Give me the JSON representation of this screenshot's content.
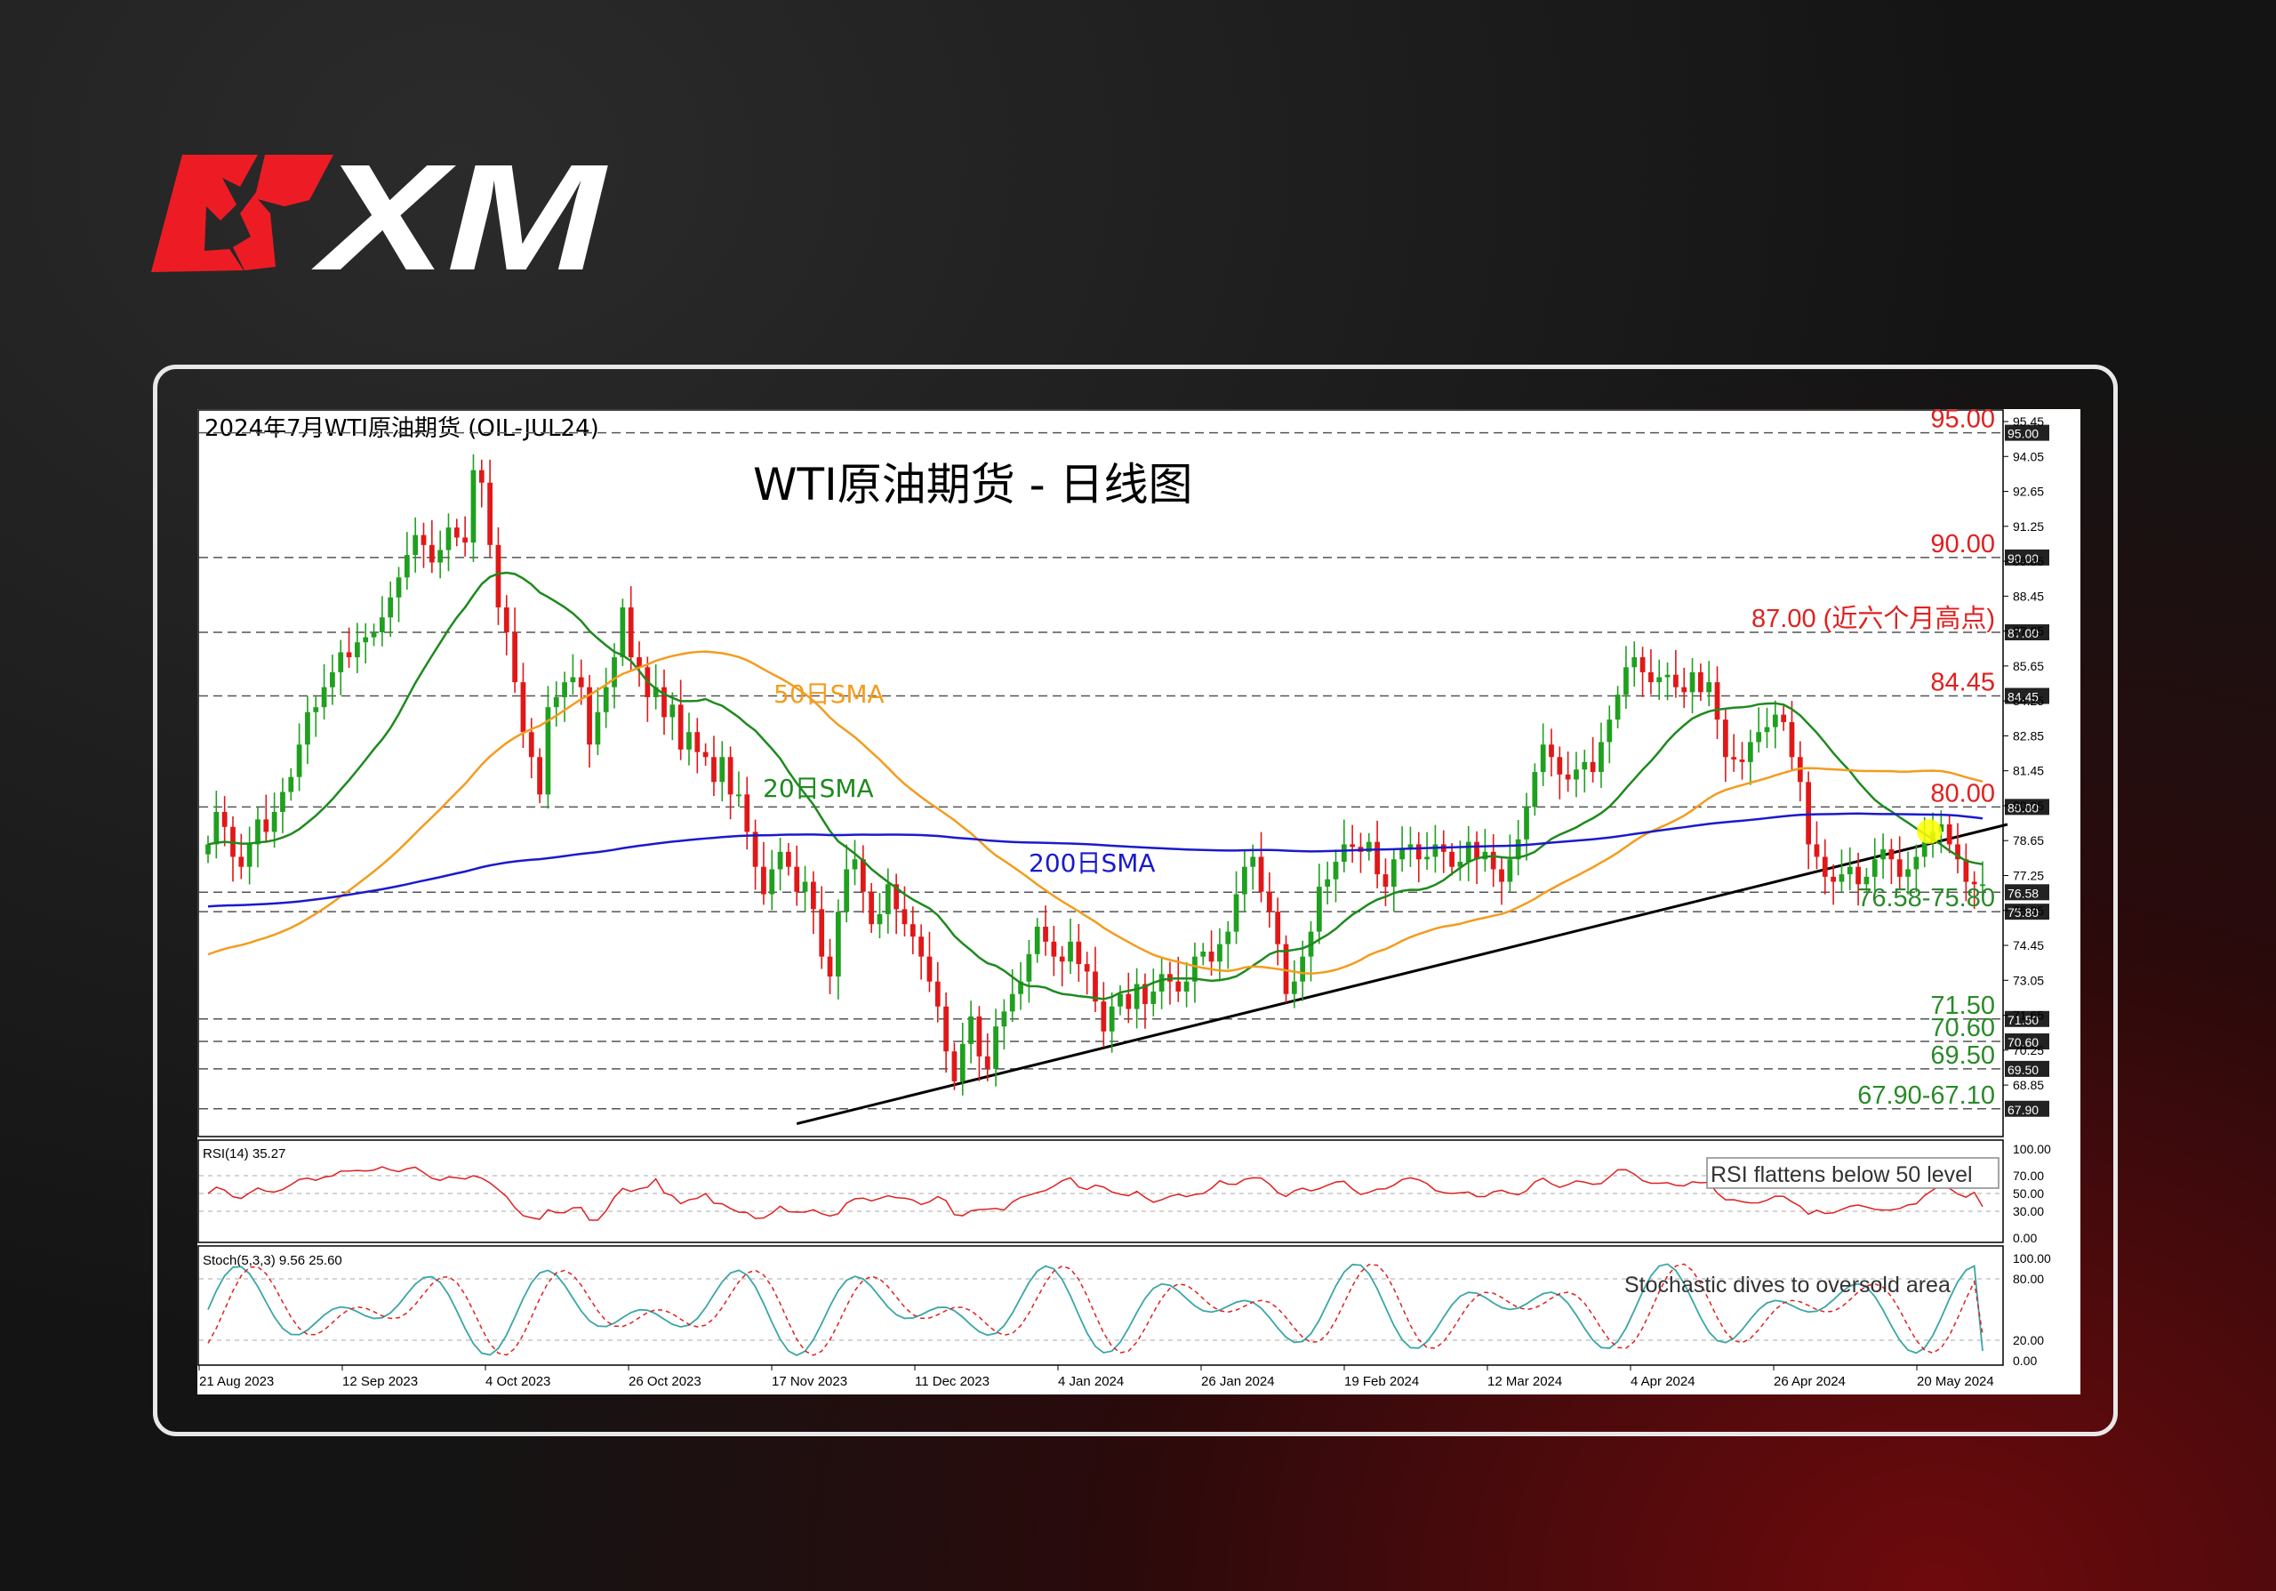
{
  "brand": {
    "name": "XM"
  },
  "chart_data": {
    "type": "candlestick",
    "instrument_label": "2024年7月WTI原油期货 (OIL-JUL24)",
    "title": "WTI原油期货 - 日线图",
    "price_axis": {
      "min": 67.0,
      "max": 95.45,
      "ticks": [
        "95.45",
        "94.05",
        "92.65",
        "91.25",
        "89.85",
        "88.45",
        "87.05",
        "85.65",
        "84.25",
        "82.85",
        "81.45",
        "80.05",
        "78.65",
        "77.25",
        "75.85",
        "74.45",
        "73.05",
        "71.65",
        "70.25",
        "68.85"
      ]
    },
    "x_labels": [
      "21 Aug 2023",
      "12 Sep 2023",
      "4 Oct 2023",
      "26 Oct 2023",
      "17 Nov 2023",
      "11 Dec 2023",
      "4 Jan 2024",
      "26 Jan 2024",
      "19 Feb 2024",
      "12 Mar 2024",
      "4 Apr 2024",
      "26 Apr 2024",
      "20 May 2024"
    ],
    "levels": [
      {
        "value": 95.0,
        "label": "95.00",
        "tag": "95.00",
        "color": "#e02020"
      },
      {
        "value": 90.0,
        "label": "90.00",
        "tag": "90.00",
        "color": "#e02020"
      },
      {
        "value": 87.0,
        "label": "87.00 (近六个月高点)",
        "tag": "87.00",
        "color": "#e02020"
      },
      {
        "value": 84.45,
        "label": "84.45",
        "tag": "84.45",
        "color": "#e02020"
      },
      {
        "value": 80.0,
        "label": "80.00",
        "tag": "80.00",
        "color": "#e02020"
      },
      {
        "value": 76.58,
        "label": "",
        "tag": "76.58",
        "color": "#2a8a2a"
      },
      {
        "value": 75.8,
        "label": "76.58-75.80",
        "tag": "75.80",
        "color": "#2a8a2a"
      },
      {
        "value": 71.5,
        "label": "71.50",
        "tag": "71.50",
        "color": "#2a8a2a"
      },
      {
        "value": 70.6,
        "label": "70.60",
        "tag": "70.60",
        "color": "#2a8a2a"
      },
      {
        "value": 69.5,
        "label": "69.50",
        "tag": "69.50",
        "color": "#2a8a2a"
      },
      {
        "value": 67.9,
        "label": "67.90-67.10",
        "tag": "67.90",
        "color": "#2a8a2a"
      }
    ],
    "last_price_tags": [
      "76.90",
      "76.58"
    ],
    "close_prices": [
      78.5,
      79.8,
      79.2,
      78.0,
      77.6,
      78.5,
      79.5,
      79.0,
      79.8,
      80.6,
      81.2,
      82.5,
      83.8,
      84.0,
      84.8,
      85.4,
      86.2,
      86.0,
      86.6,
      86.8,
      87.0,
      87.6,
      88.4,
      89.2,
      90.1,
      90.9,
      90.5,
      89.8,
      90.3,
      91.2,
      90.8,
      90.6,
      93.5,
      93.0,
      90.5,
      88.0,
      87.0,
      85.0,
      83.0,
      82.0,
      80.5,
      84.0,
      84.4,
      85.0,
      85.2,
      84.8,
      82.5,
      83.8,
      84.8,
      86.0,
      88.0,
      86.0,
      85.6,
      84.4,
      84.8,
      83.6,
      84.1,
      82.3,
      83.0,
      82.2,
      82.0,
      81.0,
      82.0,
      80.5,
      80.5,
      79.0,
      77.6,
      76.5,
      77.5,
      78.2,
      77.6,
      76.6,
      77.0,
      75.9,
      74.0,
      73.2,
      75.8,
      77.5,
      77.9,
      76.6,
      75.3,
      75.7,
      76.9,
      75.9,
      75.3,
      74.8,
      74.0,
      73.0,
      72.0,
      70.2,
      69.0,
      70.5,
      71.6,
      70.0,
      69.5,
      71.2,
      71.8,
      72.5,
      73.0,
      74.1,
      75.2,
      74.6,
      74.0,
      73.8,
      74.6,
      73.7,
      73.4,
      72.2,
      71.0,
      72.0,
      72.5,
      71.9,
      72.9,
      72.1,
      72.6,
      73.3,
      73.0,
      72.6,
      73.0,
      74.0,
      74.2,
      73.8,
      74.5,
      75.0,
      76.5,
      77.6,
      78.0,
      76.6,
      75.8,
      74.5,
      72.5,
      73.0,
      74.0,
      75.0,
      76.8,
      77.1,
      77.8,
      78.5,
      78.4,
      78.2,
      78.6,
      77.3,
      76.8,
      77.9,
      78.3,
      78.5,
      77.9,
      78.0,
      78.5,
      78.2,
      77.6,
      77.8,
      78.6,
      77.9,
      78.2,
      77.5,
      77.0,
      77.9,
      78.7,
      80.0,
      81.4,
      82.5,
      82.0,
      81.3,
      81.1,
      81.5,
      81.8,
      81.4,
      82.6,
      83.5,
      84.5,
      85.6,
      86.0,
      85.4,
      85.0,
      85.2,
      85.3,
      84.8,
      84.6,
      85.4,
      84.6,
      85.0,
      83.5,
      82.0,
      81.9,
      81.8,
      82.6,
      83.0,
      83.2,
      83.7,
      83.4,
      82.0,
      81.0,
      78.5,
      78.0,
      77.2,
      77.0,
      77.3,
      77.6,
      76.9,
      77.2,
      77.9,
      78.3,
      77.9,
      77.2,
      77.5,
      78.0,
      78.6,
      79.0,
      79.3,
      78.5,
      77.9,
      77.0,
      76.9,
      76.9
    ],
    "sma_20": {
      "label": "20日SMA",
      "color": "#1e8a1e"
    },
    "sma_50": {
      "label": "50日SMA",
      "color": "#f39c1e"
    },
    "sma_200": {
      "label": "200日SMA",
      "color": "#1a1acc"
    },
    "trendline": {
      "from": [
        71,
        67.3
      ],
      "to": [
        217,
        79.3
      ]
    },
    "rsi": {
      "label": "RSI(14) 35.27",
      "value": 35.27,
      "levels": [
        "100.00",
        "70.00",
        "50.00",
        "30.00",
        "0.00"
      ],
      "annotation": "RSI flattens below 50 level"
    },
    "stochastic": {
      "label": "Stoch(5,3,3) 9.56 25.60",
      "k": 9.56,
      "d": 25.6,
      "levels": [
        "100.00",
        "80.00",
        "20.00",
        "0.00"
      ],
      "annotation": "Stochastic dives to oversold area"
    }
  }
}
